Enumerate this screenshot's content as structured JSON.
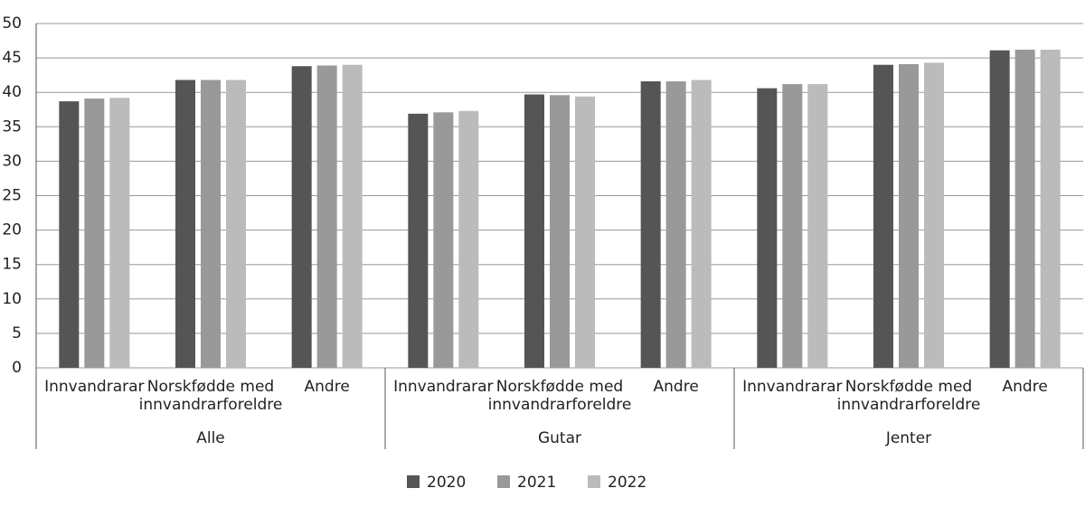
{
  "chart_data": {
    "type": "bar",
    "categories": [
      "Innvandrarar",
      "Norskfødde med innvandrarforeldre",
      "Andre",
      "Innvandrarar",
      "Norskfødde med innvandrarforeldre",
      "Andre",
      "Innvandrarar",
      "Norskfødde med innvandrarforeldre",
      "Andre"
    ],
    "groups": [
      "Alle",
      "Gutar",
      "Jenter"
    ],
    "series": [
      {
        "name": "2020",
        "color": "#555555",
        "values": [
          38.7,
          41.8,
          43.8,
          36.9,
          39.7,
          41.6,
          40.6,
          44.0,
          46.1
        ]
      },
      {
        "name": "2021",
        "color": "#999999",
        "values": [
          39.1,
          41.8,
          43.9,
          37.1,
          39.6,
          41.6,
          41.2,
          44.1,
          46.2
        ]
      },
      {
        "name": "2022",
        "color": "#bbbbbb",
        "values": [
          39.2,
          41.8,
          44.0,
          37.3,
          39.4,
          41.8,
          41.2,
          44.3,
          46.2
        ]
      }
    ],
    "ylim": [
      0,
      50
    ],
    "yticks": [
      0,
      5,
      10,
      15,
      20,
      25,
      30,
      35,
      40,
      45,
      50
    ],
    "grid": true,
    "legend": "bottom"
  }
}
